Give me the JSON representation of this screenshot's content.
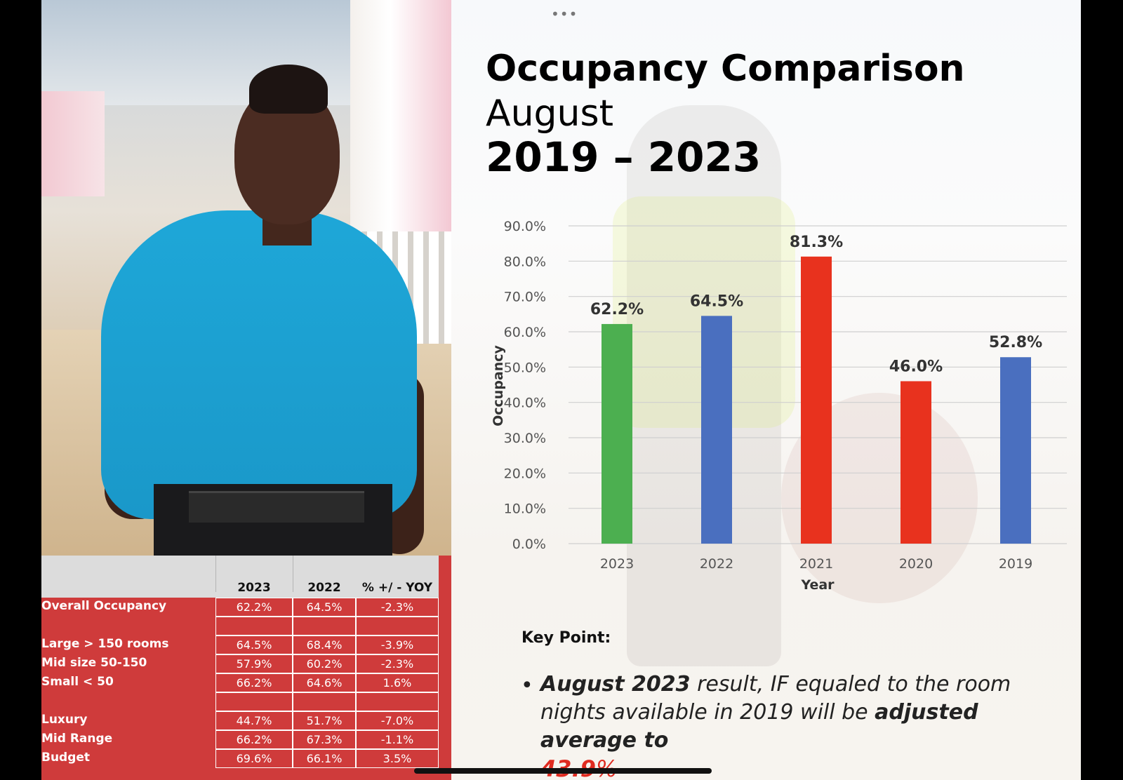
{
  "header": {
    "menu_icon": "more-dots-icon",
    "title_line1": "Occupancy Comparison",
    "title_line2": "August",
    "title_line3": "2019 – 2023"
  },
  "chart_data": {
    "type": "bar",
    "title": "",
    "xlabel": "Year",
    "ylabel": "Occupancy",
    "categories": [
      "2023",
      "2022",
      "2021",
      "2020",
      "2019"
    ],
    "values": [
      62.2,
      64.5,
      81.3,
      46.0,
      52.8
    ],
    "data_labels": [
      "62.2%",
      "64.5%",
      "81.3%",
      "46.0%",
      "52.8%"
    ],
    "bar_colors": [
      "#4caf50",
      "#4a6fbf",
      "#e8321e",
      "#e8321e",
      "#4a6fbf"
    ],
    "ylim": [
      0,
      90
    ],
    "yticks": [
      0,
      10,
      20,
      30,
      40,
      50,
      60,
      70,
      80,
      90
    ],
    "ytick_labels": [
      "0.0%",
      "10.0%",
      "20.0%",
      "30.0%",
      "40.0%",
      "50.0%",
      "60.0%",
      "70.0%",
      "80.0%",
      "90.0%"
    ],
    "grid": true,
    "legend": "none"
  },
  "table": {
    "columns": [
      "2023",
      "2022",
      "% +/ - YOY"
    ],
    "rows": [
      {
        "label": "Overall Occupancy",
        "values": [
          "62.2%",
          "64.5%",
          "-2.3%"
        ]
      },
      {
        "label": "",
        "values": [
          "",
          "",
          ""
        ]
      },
      {
        "label": "Large > 150 rooms",
        "values": [
          "64.5%",
          "68.4%",
          "-3.9%"
        ]
      },
      {
        "label": "Mid size 50-150",
        "values": [
          "57.9%",
          "60.2%",
          "-2.3%"
        ]
      },
      {
        "label": "Small < 50",
        "values": [
          "66.2%",
          "64.6%",
          "1.6%"
        ]
      },
      {
        "label": "",
        "values": [
          "",
          "",
          ""
        ]
      },
      {
        "label": "Luxury",
        "values": [
          "44.7%",
          "51.7%",
          "-7.0%"
        ]
      },
      {
        "label": "Mid Range",
        "values": [
          "66.2%",
          "67.3%",
          "-1.1%"
        ]
      },
      {
        "label": "Budget",
        "values": [
          "69.6%",
          "66.1%",
          "3.5%"
        ]
      }
    ]
  },
  "key_point": {
    "heading": "Key Point:",
    "bullet": "•",
    "bold_lead": "August 2023",
    "text_1": " result, IF equaled to the room nights available in 2019 will be ",
    "bold_mid": "adjusted average to",
    "highlight": "43.9",
    "highlight_suffix": "%",
    "highlight_color": "#e02b20"
  }
}
